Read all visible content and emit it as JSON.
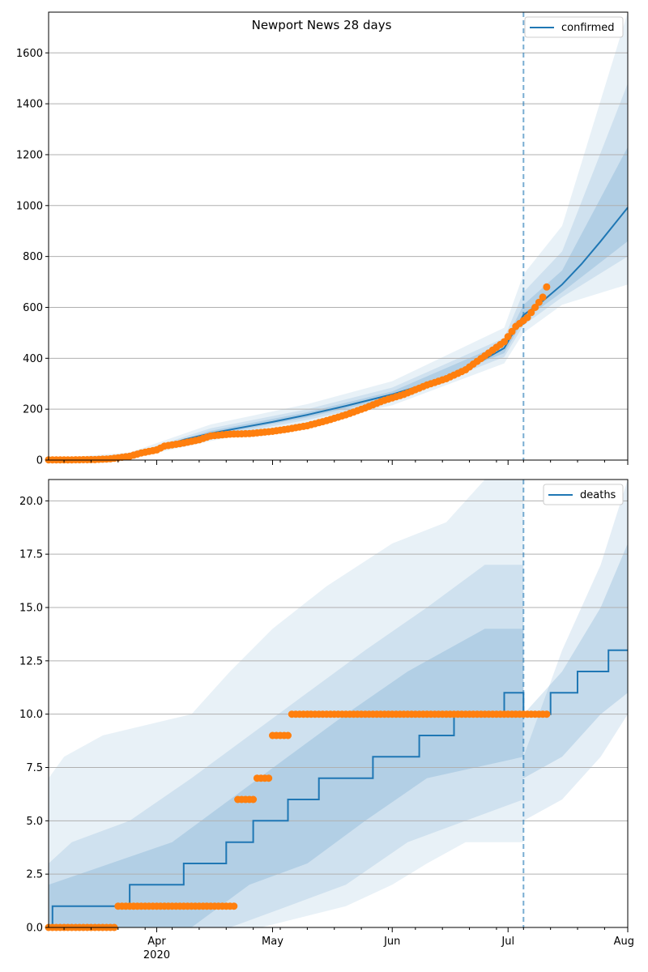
{
  "chart_data": [
    {
      "type": "line",
      "title": "Newport News 28 days",
      "ylim": [
        0,
        1760
      ],
      "yticks": [
        0,
        200,
        400,
        600,
        800,
        1000,
        1200,
        1400,
        1600
      ],
      "ytick_labels": [
        "0",
        "200",
        "400",
        "600",
        "800",
        "1000",
        "1200",
        "1400",
        "1600"
      ],
      "grid": "horizontal",
      "legend": "top-right",
      "xlim": [
        "2020-03-04",
        "2020-08-01"
      ],
      "forecast_start": "2020-07-05",
      "model": {
        "name": "confirmed",
        "color": "#1f77b4",
        "points": [
          [
            "2020-03-04",
            1
          ],
          [
            "2020-03-18",
            3
          ],
          [
            "2020-03-25",
            15
          ],
          [
            "2020-04-01",
            45
          ],
          [
            "2020-04-08",
            80
          ],
          [
            "2020-04-15",
            105
          ],
          [
            "2020-04-22",
            125
          ],
          [
            "2020-05-01",
            150
          ],
          [
            "2020-05-10",
            178
          ],
          [
            "2020-05-20",
            213
          ],
          [
            "2020-06-01",
            258
          ],
          [
            "2020-06-10",
            300
          ],
          [
            "2020-06-20",
            355
          ],
          [
            "2020-06-30",
            440
          ],
          [
            "2020-07-05",
            570
          ],
          [
            "2020-07-10",
            625
          ],
          [
            "2020-07-15",
            690
          ],
          [
            "2020-07-20",
            770
          ],
          [
            "2020-07-25",
            860
          ],
          [
            "2020-08-01",
            992
          ]
        ],
        "bands": [
          {
            "level": "outer",
            "lower": [
              [
                "2020-03-04",
                0
              ],
              [
                "2020-03-25",
                5
              ],
              [
                "2020-04-15",
                75
              ],
              [
                "2020-05-10",
                145
              ],
              [
                "2020-06-01",
                215
              ],
              [
                "2020-06-30",
                380
              ],
              [
                "2020-07-05",
                500
              ],
              [
                "2020-07-15",
                610
              ],
              [
                "2020-08-01",
                690
              ]
            ],
            "upper": [
              [
                "2020-03-04",
                5
              ],
              [
                "2020-03-25",
                30
              ],
              [
                "2020-04-15",
                140
              ],
              [
                "2020-05-10",
                220
              ],
              [
                "2020-06-01",
                310
              ],
              [
                "2020-06-30",
                520
              ],
              [
                "2020-07-05",
                730
              ],
              [
                "2020-07-15",
                920
              ],
              [
                "2020-08-01",
                1760
              ]
            ]
          },
          {
            "level": "middle",
            "lower": [
              [
                "2020-03-04",
                0
              ],
              [
                "2020-03-25",
                8
              ],
              [
                "2020-04-15",
                88
              ],
              [
                "2020-05-10",
                158
              ],
              [
                "2020-06-01",
                232
              ],
              [
                "2020-06-30",
                405
              ],
              [
                "2020-07-05",
                530
              ],
              [
                "2020-07-15",
                640
              ],
              [
                "2020-08-01",
                800
              ]
            ],
            "upper": [
              [
                "2020-03-04",
                3
              ],
              [
                "2020-03-25",
                22
              ],
              [
                "2020-04-15",
                125
              ],
              [
                "2020-05-10",
                200
              ],
              [
                "2020-06-01",
                285
              ],
              [
                "2020-06-30",
                480
              ],
              [
                "2020-07-05",
                660
              ],
              [
                "2020-07-15",
                820
              ],
              [
                "2020-08-01",
                1480
              ]
            ]
          },
          {
            "level": "inner",
            "lower": [
              [
                "2020-03-04",
                0
              ],
              [
                "2020-03-25",
                11
              ],
              [
                "2020-04-15",
                97
              ],
              [
                "2020-05-10",
                168
              ],
              [
                "2020-06-01",
                245
              ],
              [
                "2020-06-30",
                420
              ],
              [
                "2020-07-05",
                550
              ],
              [
                "2020-07-15",
                660
              ],
              [
                "2020-08-01",
                860
              ]
            ],
            "upper": [
              [
                "2020-03-04",
                2
              ],
              [
                "2020-03-25",
                18
              ],
              [
                "2020-04-15",
                115
              ],
              [
                "2020-05-10",
                188
              ],
              [
                "2020-06-01",
                270
              ],
              [
                "2020-06-30",
                460
              ],
              [
                "2020-07-05",
                610
              ],
              [
                "2020-07-15",
                745
              ],
              [
                "2020-08-01",
                1230
              ]
            ]
          }
        ]
      },
      "observed": {
        "color": "#ff7f0e",
        "points": [
          [
            "2020-03-04",
            1
          ],
          [
            "2020-03-10",
            1
          ],
          [
            "2020-03-16",
            2
          ],
          [
            "2020-03-20",
            5
          ],
          [
            "2020-03-25",
            15
          ],
          [
            "2020-03-28",
            28
          ],
          [
            "2020-04-01",
            40
          ],
          [
            "2020-04-03",
            55
          ],
          [
            "2020-04-08",
            67
          ],
          [
            "2020-04-12",
            80
          ],
          [
            "2020-04-15",
            95
          ],
          [
            "2020-04-20",
            102
          ],
          [
            "2020-04-25",
            104
          ],
          [
            "2020-05-01",
            113
          ],
          [
            "2020-05-05",
            122
          ],
          [
            "2020-05-10",
            135
          ],
          [
            "2020-05-15",
            155
          ],
          [
            "2020-05-20",
            178
          ],
          [
            "2020-05-25",
            205
          ],
          [
            "2020-05-30",
            235
          ],
          [
            "2020-06-04",
            258
          ],
          [
            "2020-06-10",
            295
          ],
          [
            "2020-06-15",
            320
          ],
          [
            "2020-06-20",
            355
          ],
          [
            "2020-06-25",
            410
          ],
          [
            "2020-06-30",
            465
          ],
          [
            "2020-07-03",
            525
          ],
          [
            "2020-07-06",
            560
          ],
          [
            "2020-07-08",
            600
          ],
          [
            "2020-07-10",
            640
          ],
          [
            "2020-07-11",
            680
          ]
        ]
      }
    },
    {
      "type": "line",
      "title": "",
      "ylim": [
        0,
        21
      ],
      "yticks": [
        0,
        2.5,
        5,
        7.5,
        10,
        12.5,
        15,
        17.5,
        20
      ],
      "ytick_labels": [
        "0.0",
        "2.5",
        "5.0",
        "7.5",
        "10.0",
        "12.5",
        "15.0",
        "17.5",
        "20.0"
      ],
      "grid": "horizontal",
      "legend": "top-right",
      "xlim": [
        "2020-03-04",
        "2020-08-01"
      ],
      "xticks": [
        {
          "date": "2020-04-01",
          "label": "Apr",
          "sublabel": "2020"
        },
        {
          "date": "2020-05-01",
          "label": "May",
          "sublabel": ""
        },
        {
          "date": "2020-06-01",
          "label": "Jun",
          "sublabel": ""
        },
        {
          "date": "2020-07-01",
          "label": "Jul",
          "sublabel": ""
        },
        {
          "date": "2020-08-01",
          "label": "Aug",
          "sublabel": ""
        }
      ],
      "forecast_start": "2020-07-05",
      "model": {
        "name": "deaths",
        "color": "#1f77b4",
        "steps": [
          [
            "2020-03-04",
            0
          ],
          [
            "2020-03-05",
            1
          ],
          [
            "2020-03-25",
            2
          ],
          [
            "2020-04-08",
            3
          ],
          [
            "2020-04-19",
            4
          ],
          [
            "2020-04-26",
            5
          ],
          [
            "2020-05-05",
            6
          ],
          [
            "2020-05-13",
            7
          ],
          [
            "2020-05-27",
            8
          ],
          [
            "2020-06-08",
            9
          ],
          [
            "2020-06-17",
            10
          ],
          [
            "2020-06-30",
            11
          ],
          [
            "2020-07-05",
            10
          ],
          [
            "2020-07-12",
            11
          ],
          [
            "2020-07-19",
            12
          ],
          [
            "2020-07-27",
            13
          ]
        ],
        "bands": [
          {
            "level": "outer",
            "lower": [
              [
                "2020-03-04",
                0
              ],
              [
                "2020-04-28",
                0
              ],
              [
                "2020-05-20",
                1
              ],
              [
                "2020-06-01",
                2
              ],
              [
                "2020-06-10",
                3
              ],
              [
                "2020-06-20",
                4
              ],
              [
                "2020-07-05",
                4
              ]
            ],
            "upper": [
              [
                "2020-03-04",
                7
              ],
              [
                "2020-03-08",
                8
              ],
              [
                "2020-03-18",
                9
              ],
              [
                "2020-04-10",
                10
              ],
              [
                "2020-04-20",
                12
              ],
              [
                "2020-05-01",
                14
              ],
              [
                "2020-05-15",
                16
              ],
              [
                "2020-06-01",
                18
              ],
              [
                "2020-06-15",
                19
              ],
              [
                "2020-06-25",
                21
              ],
              [
                "2020-07-05",
                21
              ]
            ]
          },
          {
            "level": "middle",
            "lower": [
              [
                "2020-03-04",
                0
              ],
              [
                "2020-04-20",
                0
              ],
              [
                "2020-05-05",
                1
              ],
              [
                "2020-05-20",
                2
              ],
              [
                "2020-06-05",
                4
              ],
              [
                "2020-06-20",
                5
              ],
              [
                "2020-07-05",
                6
              ]
            ],
            "upper": [
              [
                "2020-03-04",
                3
              ],
              [
                "2020-03-10",
                4
              ],
              [
                "2020-03-25",
                5
              ],
              [
                "2020-04-10",
                7
              ],
              [
                "2020-04-25",
                9
              ],
              [
                "2020-05-10",
                11
              ],
              [
                "2020-05-25",
                13
              ],
              [
                "2020-06-10",
                15
              ],
              [
                "2020-06-25",
                17
              ],
              [
                "2020-07-05",
                17
              ]
            ]
          },
          {
            "level": "inner",
            "lower": [
              [
                "2020-03-04",
                0
              ],
              [
                "2020-04-10",
                0
              ],
              [
                "2020-04-25",
                2
              ],
              [
                "2020-05-10",
                3
              ],
              [
                "2020-05-25",
                5
              ],
              [
                "2020-06-10",
                7
              ],
              [
                "2020-07-05",
                8
              ]
            ],
            "upper": [
              [
                "2020-03-04",
                2
              ],
              [
                "2020-03-20",
                3
              ],
              [
                "2020-04-05",
                4
              ],
              [
                "2020-04-20",
                6
              ],
              [
                "2020-05-05",
                8
              ],
              [
                "2020-05-20",
                10
              ],
              [
                "2020-06-05",
                12
              ],
              [
                "2020-06-25",
                14
              ],
              [
                "2020-07-05",
                14
              ]
            ]
          },
          {
            "level": "forecast-outer",
            "lower": [
              [
                "2020-07-05",
                5
              ],
              [
                "2020-07-15",
                6
              ],
              [
                "2020-07-25",
                8
              ],
              [
                "2020-08-01",
                10
              ]
            ],
            "upper": [
              [
                "2020-07-05",
                8
              ],
              [
                "2020-07-15",
                13
              ],
              [
                "2020-07-25",
                17
              ],
              [
                "2020-08-01",
                21
              ]
            ]
          },
          {
            "level": "forecast-inner",
            "lower": [
              [
                "2020-07-05",
                7
              ],
              [
                "2020-07-15",
                8
              ],
              [
                "2020-07-25",
                10
              ],
              [
                "2020-08-01",
                11
              ]
            ],
            "upper": [
              [
                "2020-07-05",
                10
              ],
              [
                "2020-07-15",
                12
              ],
              [
                "2020-07-25",
                15
              ],
              [
                "2020-08-01",
                18
              ]
            ]
          }
        ]
      },
      "observed": {
        "color": "#ff7f0e",
        "series": [
          {
            "from": "2020-03-04",
            "to": "2020-03-21",
            "value": 0
          },
          {
            "from": "2020-03-22",
            "to": "2020-04-21",
            "value": 1
          },
          {
            "from": "2020-04-22",
            "to": "2020-04-26",
            "value": 6
          },
          {
            "from": "2020-04-27",
            "to": "2020-04-30",
            "value": 7
          },
          {
            "from": "2020-05-01",
            "to": "2020-05-05",
            "value": 9
          },
          {
            "from": "2020-05-06",
            "to": "2020-07-11",
            "value": 10
          }
        ]
      }
    }
  ]
}
